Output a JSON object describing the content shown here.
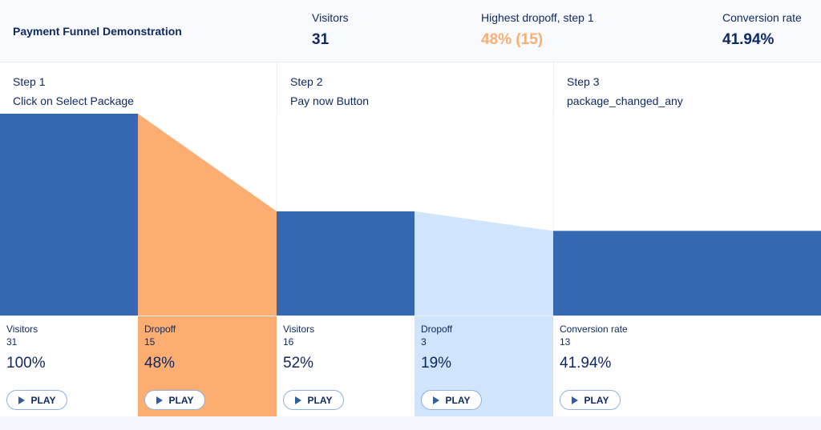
{
  "header": {
    "title": "Payment Funnel Demonstration",
    "stats": [
      {
        "label": "Visitors",
        "value": "31"
      },
      {
        "label": "Highest dropoff, step 1",
        "value": "48% (15)"
      },
      {
        "label": "Conversion rate",
        "value": "41.94%"
      }
    ]
  },
  "steps": [
    {
      "number": "Step 1",
      "name": "Click on Select Package"
    },
    {
      "number": "Step 2",
      "name": "Pay now Button"
    },
    {
      "number": "Step 3",
      "name": "package_changed_any"
    }
  ],
  "cards": [
    {
      "label": "Visitors",
      "count": "31",
      "percent": "100%",
      "play": "PLAY"
    },
    {
      "label": "Dropoff",
      "count": "15",
      "percent": "48%",
      "play": "PLAY"
    },
    {
      "label": "Visitors",
      "count": "16",
      "percent": "52%",
      "play": "PLAY"
    },
    {
      "label": "Dropoff",
      "count": "3",
      "percent": "19%",
      "play": "PLAY"
    },
    {
      "label": "Conversion rate",
      "count": "13",
      "percent": "41.94%",
      "play": "PLAY"
    }
  ],
  "colors": {
    "visitors": "#3468b2",
    "dropoff_highest": "#fbad72",
    "dropoff": "#d0e4fc",
    "text": "#0f2a62"
  },
  "chart_data": {
    "type": "bar",
    "categories": [
      "Click on Select Package",
      "Pay now Button",
      "package_changed_any"
    ],
    "values": [
      31,
      16,
      13
    ],
    "dropoffs": [
      15,
      3
    ],
    "ylim": [
      0,
      31
    ]
  }
}
